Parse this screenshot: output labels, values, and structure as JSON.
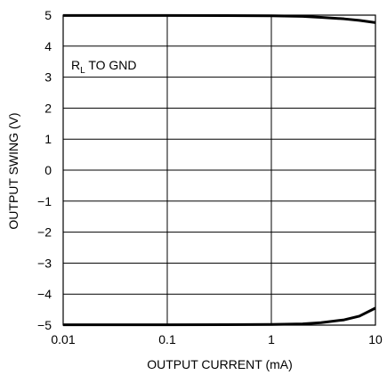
{
  "chart_data": {
    "type": "line",
    "title": "",
    "xlabel": "OUTPUT CURRENT (mA)",
    "ylabel": "OUTPUT SWING (V)",
    "x_scale": "log",
    "xlim": [
      0.01,
      10
    ],
    "ylim": [
      -5,
      5
    ],
    "x_ticks": [
      "0.01",
      "0.1",
      "1",
      "10"
    ],
    "x_tick_values": [
      0.01,
      0.1,
      1,
      10
    ],
    "y_ticks": [
      "5",
      "4",
      "3",
      "2",
      "1",
      "0",
      "−1",
      "−2",
      "−3",
      "−4",
      "−5"
    ],
    "y_tick_values": [
      5,
      4,
      3,
      2,
      1,
      0,
      -1,
      -2,
      -3,
      -4,
      -5
    ],
    "grid": true,
    "annotation": {
      "main": "R",
      "sub": "L",
      "rest": " TO GND"
    },
    "series": [
      {
        "x": [
          0.01,
          0.1,
          1,
          2,
          3,
          5,
          7,
          10
        ],
        "y": [
          4.99,
          4.99,
          4.98,
          4.96,
          4.93,
          4.88,
          4.83,
          4.76
        ]
      },
      {
        "x": [
          0.01,
          0.1,
          1,
          2,
          3,
          5,
          7,
          10
        ],
        "y": [
          -4.99,
          -4.99,
          -4.98,
          -4.96,
          -4.92,
          -4.83,
          -4.71,
          -4.45
        ]
      }
    ],
    "line_color": "#000000"
  }
}
